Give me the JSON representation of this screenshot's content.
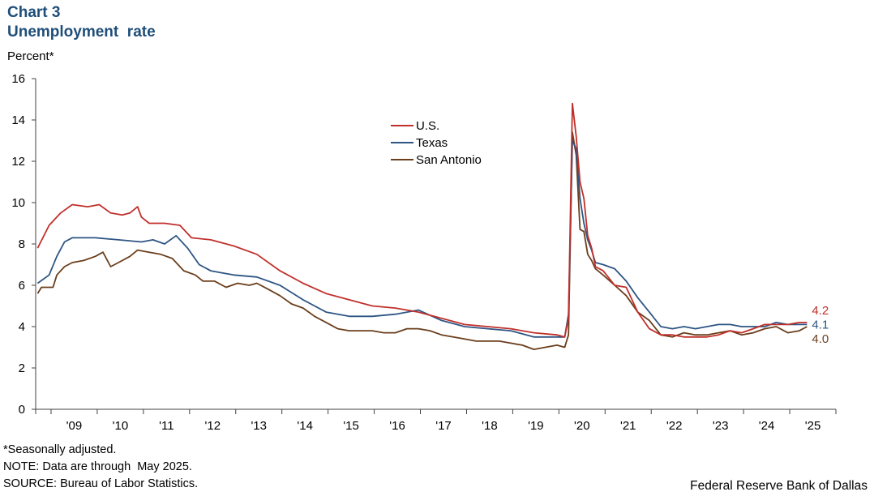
{
  "header": {
    "chart_number": "Chart 3",
    "title": "Unemployment  rate"
  },
  "footnotes": {
    "seasonal": "*Seasonally adjusted.",
    "note": "NOTE: Data are through  May 2025.",
    "source": "SOURCE: Bureau of Labor Statistics."
  },
  "source_org": "Federal Reserve Bank of Dallas",
  "colors": {
    "us": "#c0302b",
    "texas": "#2e5583",
    "san_antonio": "#6b3e1c",
    "axis": "#404040"
  },
  "chart_data": {
    "type": "line",
    "ylabel": "Percent*",
    "ylim": [
      0,
      16
    ],
    "y_ticks": [
      0,
      2,
      4,
      6,
      8,
      10,
      12,
      14,
      16
    ],
    "x_start": "2008-09",
    "x_end": "2025-12",
    "x_tick_labels": [
      "'09",
      "'10",
      "'11",
      "'12",
      "'13",
      "'14",
      "'15",
      "'16",
      "'17",
      "'18",
      "'19",
      "'20",
      "'21",
      "'22",
      "'23",
      "'24",
      "'25"
    ],
    "legend_position": "top-center",
    "grid": false,
    "end_labels": [
      {
        "series": "U.S.",
        "text": "4.2"
      },
      {
        "series": "Texas",
        "text": "4.1"
      },
      {
        "series": "San Antonio",
        "text": "4.0"
      }
    ],
    "series": [
      {
        "name": "U.S.",
        "color": "#c0302b",
        "points": [
          [
            "2008-09",
            7.8
          ],
          [
            "2008-12",
            8.9
          ],
          [
            "2009-03",
            9.5
          ],
          [
            "2009-06",
            9.9
          ],
          [
            "2009-10",
            9.8
          ],
          [
            "2010-01",
            9.9
          ],
          [
            "2010-04",
            9.5
          ],
          [
            "2010-07",
            9.4
          ],
          [
            "2010-09",
            9.5
          ],
          [
            "2010-11",
            9.8
          ],
          [
            "2010-12",
            9.3
          ],
          [
            "2011-02",
            9.0
          ],
          [
            "2011-06",
            9.0
          ],
          [
            "2011-10",
            8.9
          ],
          [
            "2012-01",
            8.3
          ],
          [
            "2012-06",
            8.2
          ],
          [
            "2012-12",
            7.9
          ],
          [
            "2013-06",
            7.5
          ],
          [
            "2013-12",
            6.7
          ],
          [
            "2014-06",
            6.1
          ],
          [
            "2014-12",
            5.6
          ],
          [
            "2015-06",
            5.3
          ],
          [
            "2015-12",
            5.0
          ],
          [
            "2016-06",
            4.9
          ],
          [
            "2016-12",
            4.7
          ],
          [
            "2017-06",
            4.4
          ],
          [
            "2017-12",
            4.1
          ],
          [
            "2018-06",
            4.0
          ],
          [
            "2018-12",
            3.9
          ],
          [
            "2019-06",
            3.7
          ],
          [
            "2019-12",
            3.6
          ],
          [
            "2020-02",
            3.5
          ],
          [
            "2020-03",
            4.4
          ],
          [
            "2020-04",
            14.8
          ],
          [
            "2020-05",
            13.2
          ],
          [
            "2020-06",
            11.0
          ],
          [
            "2020-07",
            10.2
          ],
          [
            "2020-08",
            8.4
          ],
          [
            "2020-09",
            7.8
          ],
          [
            "2020-10",
            6.9
          ],
          [
            "2020-12",
            6.7
          ],
          [
            "2021-03",
            6.0
          ],
          [
            "2021-06",
            5.9
          ],
          [
            "2021-09",
            4.7
          ],
          [
            "2021-12",
            3.9
          ],
          [
            "2022-03",
            3.6
          ],
          [
            "2022-06",
            3.6
          ],
          [
            "2022-09",
            3.5
          ],
          [
            "2022-12",
            3.5
          ],
          [
            "2023-03",
            3.5
          ],
          [
            "2023-06",
            3.6
          ],
          [
            "2023-09",
            3.8
          ],
          [
            "2023-12",
            3.7
          ],
          [
            "2024-03",
            3.9
          ],
          [
            "2024-06",
            4.1
          ],
          [
            "2024-09",
            4.1
          ],
          [
            "2024-12",
            4.1
          ],
          [
            "2025-03",
            4.2
          ],
          [
            "2025-05",
            4.2
          ]
        ]
      },
      {
        "name": "Texas",
        "color": "#2e5583",
        "points": [
          [
            "2008-09",
            6.1
          ],
          [
            "2008-12",
            6.5
          ],
          [
            "2009-02",
            7.4
          ],
          [
            "2009-04",
            8.1
          ],
          [
            "2009-06",
            8.3
          ],
          [
            "2009-12",
            8.3
          ],
          [
            "2010-06",
            8.2
          ],
          [
            "2010-12",
            8.1
          ],
          [
            "2011-03",
            8.2
          ],
          [
            "2011-06",
            8.0
          ],
          [
            "2011-09",
            8.4
          ],
          [
            "2011-12",
            7.8
          ],
          [
            "2012-03",
            7.0
          ],
          [
            "2012-06",
            6.7
          ],
          [
            "2012-09",
            6.6
          ],
          [
            "2012-12",
            6.5
          ],
          [
            "2013-06",
            6.4
          ],
          [
            "2013-12",
            6.0
          ],
          [
            "2014-06",
            5.3
          ],
          [
            "2014-12",
            4.7
          ],
          [
            "2015-06",
            4.5
          ],
          [
            "2015-12",
            4.5
          ],
          [
            "2016-06",
            4.6
          ],
          [
            "2016-12",
            4.8
          ],
          [
            "2017-06",
            4.3
          ],
          [
            "2017-12",
            4.0
          ],
          [
            "2018-06",
            3.9
          ],
          [
            "2018-12",
            3.8
          ],
          [
            "2019-06",
            3.5
          ],
          [
            "2019-12",
            3.5
          ],
          [
            "2020-02",
            3.5
          ],
          [
            "2020-03",
            4.6
          ],
          [
            "2020-04",
            13.0
          ],
          [
            "2020-05",
            12.6
          ],
          [
            "2020-06",
            10.2
          ],
          [
            "2020-07",
            9.0
          ],
          [
            "2020-08",
            8.2
          ],
          [
            "2020-09",
            7.7
          ],
          [
            "2020-10",
            7.1
          ],
          [
            "2020-12",
            7.0
          ],
          [
            "2021-03",
            6.8
          ],
          [
            "2021-06",
            6.2
          ],
          [
            "2021-09",
            5.4
          ],
          [
            "2021-12",
            4.7
          ],
          [
            "2022-03",
            4.0
          ],
          [
            "2022-06",
            3.9
          ],
          [
            "2022-09",
            4.0
          ],
          [
            "2022-12",
            3.9
          ],
          [
            "2023-03",
            4.0
          ],
          [
            "2023-06",
            4.1
          ],
          [
            "2023-09",
            4.1
          ],
          [
            "2023-12",
            4.0
          ],
          [
            "2024-03",
            4.0
          ],
          [
            "2024-06",
            4.0
          ],
          [
            "2024-09",
            4.2
          ],
          [
            "2024-12",
            4.1
          ],
          [
            "2025-03",
            4.1
          ],
          [
            "2025-05",
            4.1
          ]
        ]
      },
      {
        "name": "San Antonio",
        "color": "#6b3e1c",
        "points": [
          [
            "2008-09",
            5.6
          ],
          [
            "2008-10",
            5.9
          ],
          [
            "2009-01",
            5.9
          ],
          [
            "2009-02",
            6.5
          ],
          [
            "2009-04",
            6.9
          ],
          [
            "2009-06",
            7.1
          ],
          [
            "2009-09",
            7.2
          ],
          [
            "2009-12",
            7.4
          ],
          [
            "2010-02",
            7.6
          ],
          [
            "2010-04",
            6.9
          ],
          [
            "2010-06",
            7.1
          ],
          [
            "2010-09",
            7.4
          ],
          [
            "2010-11",
            7.7
          ],
          [
            "2011-02",
            7.6
          ],
          [
            "2011-05",
            7.5
          ],
          [
            "2011-08",
            7.3
          ],
          [
            "2011-11",
            6.7
          ],
          [
            "2012-02",
            6.5
          ],
          [
            "2012-04",
            6.2
          ],
          [
            "2012-07",
            6.2
          ],
          [
            "2012-10",
            5.9
          ],
          [
            "2013-01",
            6.1
          ],
          [
            "2013-04",
            6.0
          ],
          [
            "2013-06",
            6.1
          ],
          [
            "2013-09",
            5.8
          ],
          [
            "2013-12",
            5.5
          ],
          [
            "2014-03",
            5.1
          ],
          [
            "2014-06",
            4.9
          ],
          [
            "2014-09",
            4.5
          ],
          [
            "2014-12",
            4.2
          ],
          [
            "2015-03",
            3.9
          ],
          [
            "2015-06",
            3.8
          ],
          [
            "2015-09",
            3.8
          ],
          [
            "2015-12",
            3.8
          ],
          [
            "2016-03",
            3.7
          ],
          [
            "2016-06",
            3.7
          ],
          [
            "2016-09",
            3.9
          ],
          [
            "2016-12",
            3.9
          ],
          [
            "2017-03",
            3.8
          ],
          [
            "2017-06",
            3.6
          ],
          [
            "2017-09",
            3.5
          ],
          [
            "2017-12",
            3.4
          ],
          [
            "2018-03",
            3.3
          ],
          [
            "2018-06",
            3.3
          ],
          [
            "2018-09",
            3.3
          ],
          [
            "2018-12",
            3.2
          ],
          [
            "2019-03",
            3.1
          ],
          [
            "2019-06",
            2.9
          ],
          [
            "2019-09",
            3.0
          ],
          [
            "2019-12",
            3.1
          ],
          [
            "2020-02",
            3.0
          ],
          [
            "2020-03",
            3.6
          ],
          [
            "2020-04",
            13.4
          ],
          [
            "2020-05",
            12.3
          ],
          [
            "2020-06",
            8.7
          ],
          [
            "2020-07",
            8.6
          ],
          [
            "2020-08",
            7.5
          ],
          [
            "2020-09",
            7.2
          ],
          [
            "2020-10",
            6.8
          ],
          [
            "2020-12",
            6.5
          ],
          [
            "2021-03",
            6.0
          ],
          [
            "2021-06",
            5.5
          ],
          [
            "2021-09",
            4.7
          ],
          [
            "2021-12",
            4.3
          ],
          [
            "2022-03",
            3.6
          ],
          [
            "2022-06",
            3.5
          ],
          [
            "2022-09",
            3.7
          ],
          [
            "2022-12",
            3.6
          ],
          [
            "2023-03",
            3.6
          ],
          [
            "2023-06",
            3.7
          ],
          [
            "2023-09",
            3.8
          ],
          [
            "2023-12",
            3.6
          ],
          [
            "2024-03",
            3.7
          ],
          [
            "2024-06",
            3.9
          ],
          [
            "2024-09",
            4.0
          ],
          [
            "2024-12",
            3.7
          ],
          [
            "2025-03",
            3.8
          ],
          [
            "2025-05",
            4.0
          ]
        ]
      }
    ]
  }
}
